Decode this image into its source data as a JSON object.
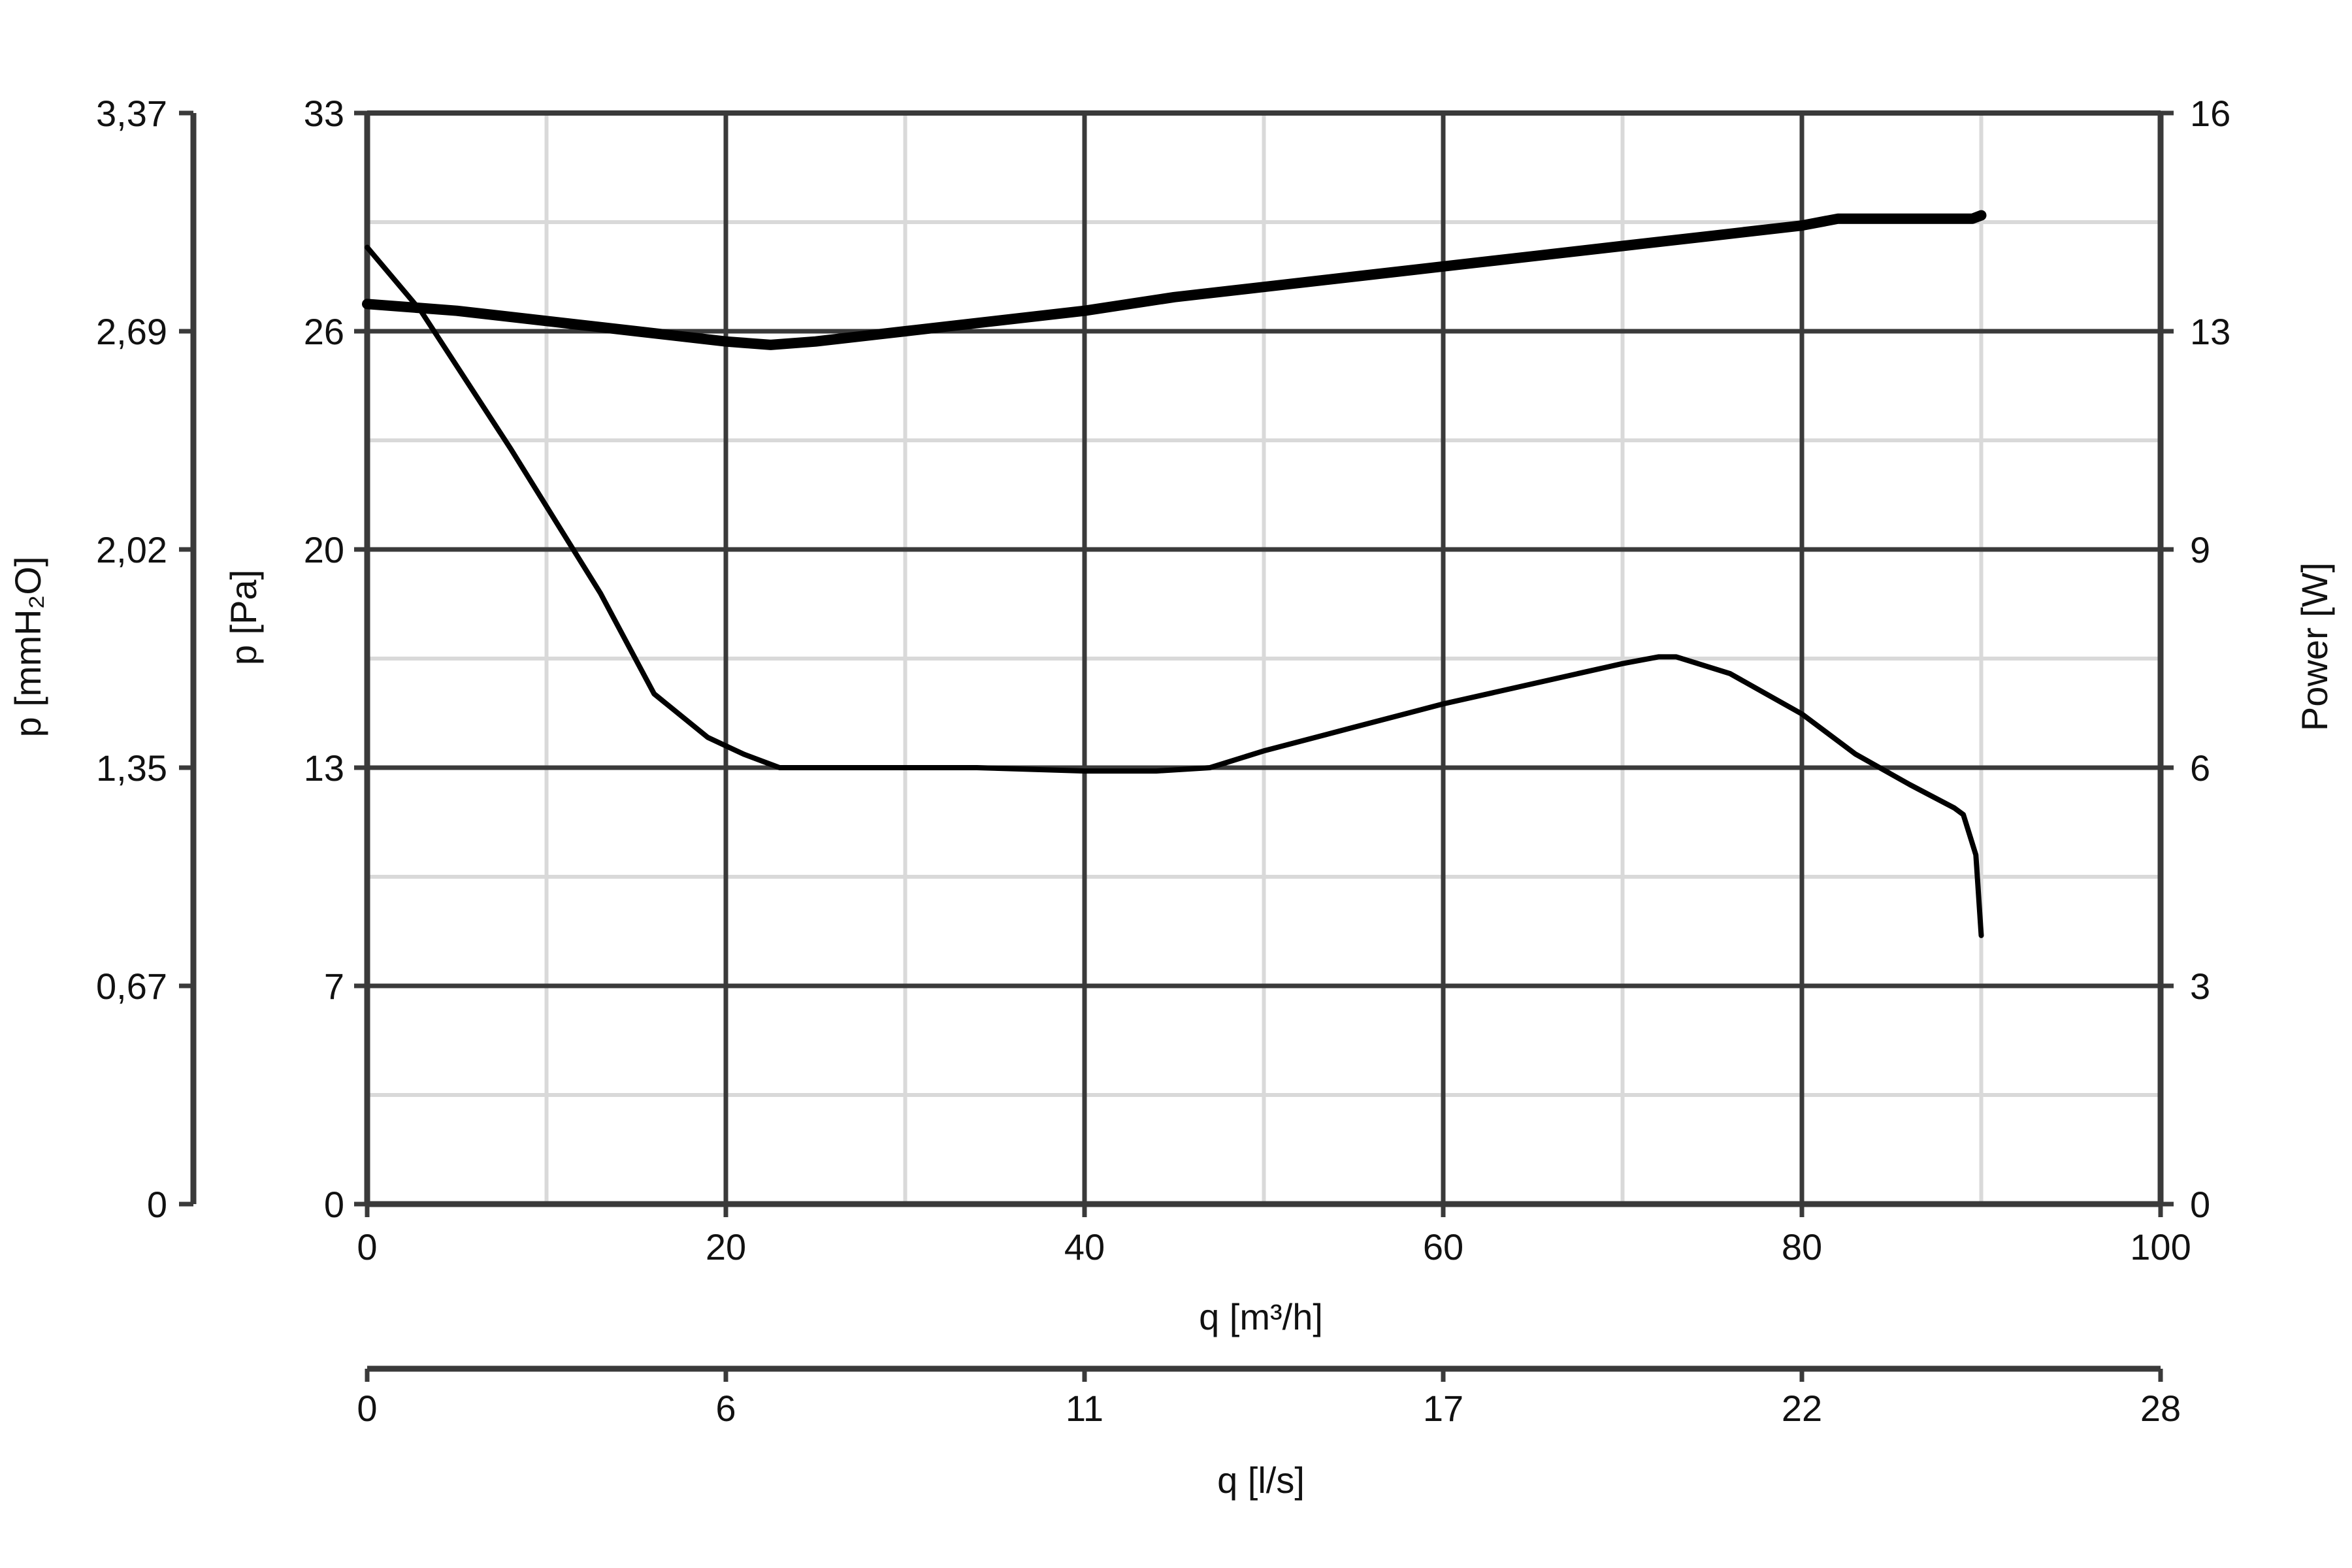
{
  "chart_data": {
    "type": "line",
    "x_axis": {
      "label": "q [m³/h]",
      "range": [
        0,
        100
      ],
      "ticks": [
        "0",
        "20",
        "40",
        "60",
        "80",
        "100"
      ],
      "tick_values": [
        0,
        20,
        40,
        60,
        80,
        100
      ],
      "minor_ticks": [
        10,
        30,
        50,
        70,
        90
      ]
    },
    "x2_axis": {
      "label": "q [l/s]",
      "ticks": [
        "0",
        "6",
        "11",
        "17",
        "22",
        "28"
      ]
    },
    "y_axis": {
      "label": "p [Pa]",
      "range": [
        0,
        32.5
      ],
      "ticks": [
        "0",
        "7",
        "13",
        "20",
        "26",
        "33"
      ],
      "tick_values": [
        0,
        6.5,
        13,
        19.5,
        26,
        32.5
      ],
      "minor_ticks": [
        3.25,
        9.75,
        16.25,
        22.75,
        29.25
      ]
    },
    "y_axis_left_outer": {
      "label": "p [mmH₂O]",
      "ticks": [
        "0",
        "0,67",
        "1,35",
        "2,02",
        "2,69",
        "3,37"
      ]
    },
    "y2_axis": {
      "label": "Power [W]",
      "range": [
        0,
        16
      ],
      "ticks": [
        "0",
        "3",
        "6",
        "9",
        "13",
        "16"
      ]
    },
    "grid": true,
    "series": [
      {
        "axis": "p [Pa]",
        "color": "#000000",
        "x": [
          0,
          3,
          8,
          13,
          16,
          19,
          21,
          23,
          30,
          34,
          40,
          44,
          47,
          50,
          55,
          60,
          65,
          70,
          72,
          73,
          76,
          80,
          83,
          86,
          88.5,
          89,
          89.7,
          90
        ],
        "y": [
          28.5,
          26.6,
          22.5,
          18.2,
          15.2,
          13.9,
          13.4,
          13.0,
          13.0,
          13.0,
          12.9,
          12.9,
          13.0,
          13.5,
          14.2,
          14.9,
          15.5,
          16.1,
          16.3,
          16.3,
          15.8,
          14.6,
          13.4,
          12.5,
          11.8,
          11.6,
          10.4,
          8.0
        ]
      },
      {
        "axis": "Power [W]",
        "color": "#000000",
        "x": [
          0,
          5,
          10,
          15,
          20,
          22.5,
          25,
          30,
          35,
          40,
          45,
          50,
          55,
          60,
          65,
          70,
          75,
          80,
          82,
          85,
          88,
          89.5,
          90
        ],
        "y": [
          13.2,
          13.1,
          12.95,
          12.8,
          12.65,
          12.6,
          12.65,
          12.8,
          12.95,
          13.1,
          13.3,
          13.45,
          13.6,
          13.75,
          13.9,
          14.05,
          14.2,
          14.35,
          14.45,
          14.45,
          14.45,
          14.45,
          14.5
        ]
      }
    ]
  }
}
